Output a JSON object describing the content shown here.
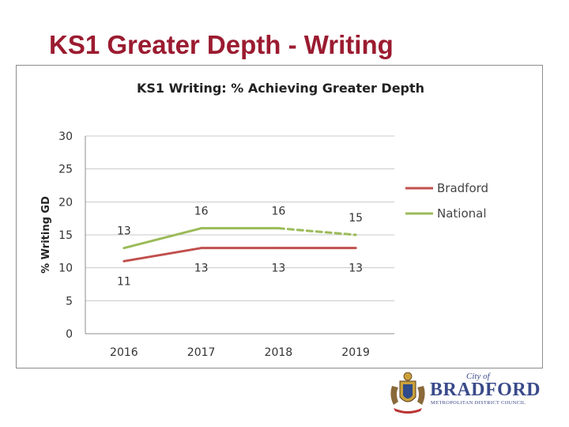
{
  "slide": {
    "title": "KS1 Greater Depth - Writing"
  },
  "chart_data": {
    "type": "line",
    "title": "KS1 Writing: % Achieving Greater Depth",
    "xlabel": "",
    "ylabel": "% Writing GD",
    "categories": [
      "2016",
      "2017",
      "2018",
      "2019"
    ],
    "ylim": [
      0,
      30
    ],
    "yticks": [
      0,
      5,
      10,
      15,
      20,
      25,
      30
    ],
    "grid": true,
    "legend_position": "right",
    "series": [
      {
        "name": "Bradford",
        "values": [
          11,
          13,
          13,
          13
        ],
        "labels": [
          "11",
          "13",
          "13",
          "13"
        ],
        "color": "#c0504d"
      },
      {
        "name": "National",
        "values": [
          13,
          16,
          16,
          15
        ],
        "labels": [
          "13",
          "16",
          "16",
          "15"
        ],
        "color": "#9bbb59",
        "dashed_segments": [
          2
        ]
      }
    ]
  },
  "logo": {
    "city_of": "City of",
    "name": "BRADFORD",
    "subtitle": "METROPOLITAN DISTRICT COUNCIL",
    "crest_icon": "coat-of-arms-icon"
  }
}
